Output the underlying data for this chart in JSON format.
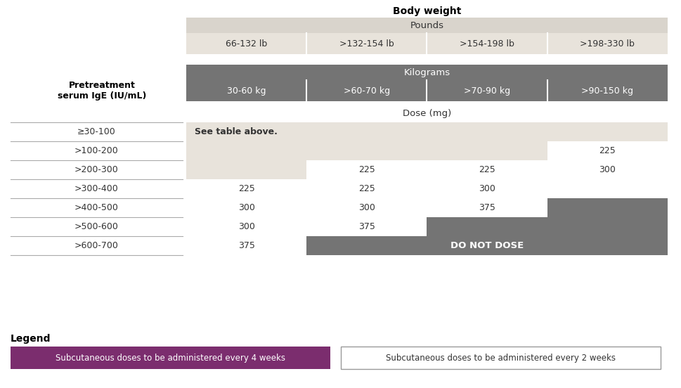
{
  "title": "Body weight",
  "bg_color": "#ffffff",
  "pounds_header": "Pounds",
  "pounds_cols": [
    "66-132 lb",
    ">132-154 lb",
    ">154-198 lb",
    ">198-330 lb"
  ],
  "kg_header": "Kilograms",
  "kg_cols": [
    "30-60 kg",
    ">60-70 kg",
    ">70-90 kg",
    ">90-150 kg"
  ],
  "row_label_header": "Pretreatment\nserum IgE (IU/mL)",
  "dose_header": "Dose (mg)",
  "ige_rows": [
    "≥30-100",
    ">100-200",
    ">200-300",
    ">300-400",
    ">400-500",
    ">500-600",
    ">600-700"
  ],
  "dose_data": [
    [
      "See table above.",
      null,
      null,
      null
    ],
    [
      null,
      null,
      null,
      "225"
    ],
    [
      null,
      "225",
      "225",
      "300"
    ],
    [
      "225",
      "225",
      "300",
      null
    ],
    [
      "300",
      "300",
      "375",
      null
    ],
    [
      "300",
      "375",
      null,
      null
    ],
    [
      "375",
      null,
      null,
      null
    ]
  ],
  "light_gray_header": "#d9d4cc",
  "light_gray_row": "#e8e3db",
  "dark_gray": "#747474",
  "light_bg": "#e8e3db",
  "purple_color": "#7b2d6e",
  "legend_4w_text": "Subcutaneous doses to be administered every 4 weeks",
  "legend_2w_text": "Subcutaneous doses to be administered every 2 weeks",
  "legend_title": "Legend"
}
